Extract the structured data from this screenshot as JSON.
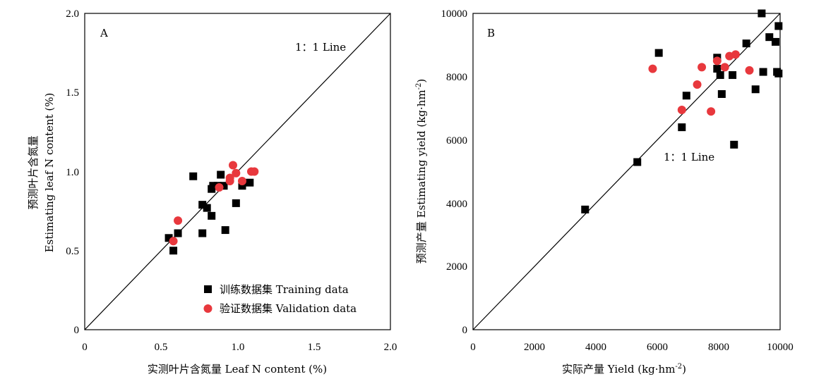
{
  "chart_data": [
    {
      "type": "scatter",
      "panel_label": "A",
      "xlabel": "实测叶片含氮量 Leaf N content (%)",
      "ylabel_line1": "预测叶片含氮量",
      "ylabel_line2": "Estimating leaf N content (%)",
      "xlim": [
        0,
        2.0
      ],
      "ylim": [
        0,
        2.0
      ],
      "x_ticks": [
        "0",
        "0.5",
        "1.0",
        "1.5",
        "2.0"
      ],
      "y_ticks": [
        "0",
        "0.5",
        "1.0",
        "1.5",
        "2.0"
      ],
      "one_to_one_label": "1：1 Line",
      "legend": {
        "placement": "bottom-right",
        "training": "训练数据集 Training data",
        "validation": "验证数据集 Validation data"
      },
      "series": [
        {
          "name": "训练数据集 Training data",
          "marker": "square",
          "color": "#000000",
          "points": [
            [
              0.55,
              0.58
            ],
            [
              0.58,
              0.5
            ],
            [
              0.61,
              0.61
            ],
            [
              0.71,
              0.97
            ],
            [
              0.77,
              0.79
            ],
            [
              0.77,
              0.61
            ],
            [
              0.8,
              0.77
            ],
            [
              0.83,
              0.72
            ],
            [
              0.83,
              0.89
            ],
            [
              0.84,
              0.91
            ],
            [
              0.87,
              0.91
            ],
            [
              0.89,
              0.98
            ],
            [
              0.91,
              0.91
            ],
            [
              0.92,
              0.63
            ],
            [
              0.99,
              0.8
            ],
            [
              1.03,
              0.91
            ],
            [
              1.08,
              0.93
            ]
          ]
        },
        {
          "name": "验证数据集 Validation data",
          "marker": "circle",
          "color": "#e8383d",
          "points": [
            [
              0.58,
              0.56
            ],
            [
              0.61,
              0.69
            ],
            [
              0.88,
              0.9
            ],
            [
              0.95,
              0.96
            ],
            [
              0.95,
              0.94
            ],
            [
              0.97,
              1.04
            ],
            [
              0.99,
              0.99
            ],
            [
              1.03,
              0.94
            ],
            [
              1.09,
              1.0
            ],
            [
              1.11,
              1.0
            ]
          ]
        }
      ]
    },
    {
      "type": "scatter",
      "panel_label": "B",
      "xlabel": "实际产量 Yield (kg·hm",
      "xlabel_sup": "-2",
      "xlabel_tail": ")",
      "ylabel": "预测产量 Estimating yield (kg·hm",
      "ylabel_sup": "-2",
      "ylabel_tail": ")",
      "xlim": [
        0,
        10000
      ],
      "ylim": [
        0,
        10000
      ],
      "x_ticks": [
        "0",
        "2000",
        "4000",
        "6000",
        "8000",
        "10000"
      ],
      "y_ticks": [
        "0",
        "2000",
        "4000",
        "6000",
        "8000",
        "10000"
      ],
      "one_to_one_label": "1：1 Line",
      "series": [
        {
          "name": "训练数据集 Training data",
          "marker": "square",
          "color": "#000000",
          "points": [
            [
              3650,
              3800
            ],
            [
              5350,
              5300
            ],
            [
              6050,
              8750
            ],
            [
              6800,
              6400
            ],
            [
              6950,
              7400
            ],
            [
              7950,
              8600
            ],
            [
              7950,
              8250
            ],
            [
              8050,
              8050
            ],
            [
              8100,
              7450
            ],
            [
              8450,
              8050
            ],
            [
              8500,
              5850
            ],
            [
              8900,
              9050
            ],
            [
              9200,
              7600
            ],
            [
              9400,
              10000
            ],
            [
              9450,
              8150
            ],
            [
              9650,
              9250
            ],
            [
              9850,
              9100
            ],
            [
              9900,
              8150
            ],
            [
              9950,
              9600
            ],
            [
              9950,
              8100
            ]
          ]
        },
        {
          "name": "验证数据集 Validation data",
          "marker": "circle",
          "color": "#e8383d",
          "points": [
            [
              5850,
              8250
            ],
            [
              6800,
              6950
            ],
            [
              7300,
              7750
            ],
            [
              7450,
              8300
            ],
            [
              7750,
              6900
            ],
            [
              7950,
              8500
            ],
            [
              8200,
              8300
            ],
            [
              8350,
              8650
            ],
            [
              8550,
              8700
            ],
            [
              9000,
              8200
            ]
          ]
        }
      ]
    }
  ]
}
